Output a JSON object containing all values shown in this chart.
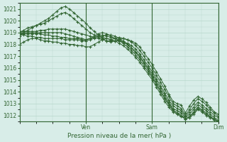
{
  "title": "",
  "xlabel": "Pression niveau de la mer( hPa )",
  "ylabel": "",
  "bg_color": "#d8ede8",
  "grid_color": "#b8d8cc",
  "line_color": "#336633",
  "marker_color": "#336633",
  "ylim": [
    1011.5,
    1021.5
  ],
  "yticks": [
    1012,
    1013,
    1014,
    1015,
    1016,
    1017,
    1018,
    1019,
    1020,
    1021
  ],
  "day_labels": [
    "Ven",
    "Sam",
    "Dim"
  ],
  "day_positions": [
    0.333,
    0.666,
    1.0
  ],
  "series": [
    {
      "x": [
        0,
        2,
        4,
        6,
        8,
        10,
        12,
        14,
        16,
        18,
        20,
        22,
        24,
        26,
        28,
        30,
        32,
        34,
        36,
        38,
        40,
        42,
        44,
        46,
        48,
        50,
        52,
        54,
        56,
        58,
        60,
        62,
        64,
        66,
        68,
        70,
        72,
        74,
        76,
        78,
        80,
        82,
        84,
        86,
        88,
        90,
        92,
        94,
        96
      ],
      "y": [
        1018.7,
        1019.0,
        1019.2,
        1019.4,
        1019.6,
        1019.8,
        1020.0,
        1020.2,
        1020.5,
        1020.8,
        1021.1,
        1021.2,
        1021.0,
        1020.7,
        1020.4,
        1020.1,
        1019.8,
        1019.4,
        1019.1,
        1018.8,
        1018.5,
        1018.3,
        1018.2,
        1018.3,
        1018.4,
        1018.5,
        1018.4,
        1018.3,
        1018.1,
        1017.8,
        1017.3,
        1016.8,
        1016.3,
        1015.7,
        1015.1,
        1014.5,
        1013.8,
        1013.2,
        1013.0,
        1012.9,
        1012.2,
        1012.8,
        1013.3,
        1013.6,
        1013.4,
        1013.1,
        1012.7,
        1012.3,
        1012.1
      ]
    },
    {
      "x": [
        0,
        2,
        4,
        6,
        8,
        10,
        12,
        14,
        16,
        18,
        20,
        22,
        24,
        26,
        28,
        30,
        32,
        34,
        36,
        38,
        40,
        42,
        44,
        46,
        48,
        50,
        52,
        54,
        56,
        58,
        60,
        62,
        64,
        66,
        68,
        70,
        72,
        74,
        76,
        78,
        80,
        82,
        84,
        86,
        88,
        90,
        92,
        94,
        96
      ],
      "y": [
        1019.0,
        1019.2,
        1019.4,
        1019.5,
        1019.6,
        1019.7,
        1019.8,
        1020.0,
        1020.2,
        1020.4,
        1020.6,
        1020.7,
        1020.5,
        1020.2,
        1019.9,
        1019.6,
        1019.3,
        1019.0,
        1018.8,
        1018.7,
        1018.6,
        1018.5,
        1018.4,
        1018.5,
        1018.6,
        1018.5,
        1018.4,
        1018.2,
        1017.9,
        1017.5,
        1017.0,
        1016.5,
        1016.0,
        1015.4,
        1014.8,
        1014.2,
        1013.6,
        1013.0,
        1012.8,
        1012.6,
        1012.0,
        1012.5,
        1013.0,
        1013.4,
        1013.2,
        1012.9,
        1012.5,
        1012.2,
        1011.9
      ]
    },
    {
      "x": [
        0,
        2,
        4,
        6,
        8,
        10,
        12,
        14,
        16,
        18,
        20,
        22,
        24,
        26,
        28,
        30,
        32,
        34,
        36,
        38,
        40,
        42,
        44,
        46,
        48,
        50,
        52,
        54,
        56,
        58,
        60,
        62,
        64,
        66,
        68,
        70,
        72,
        74,
        76,
        78,
        80,
        82,
        84,
        86,
        88,
        90,
        92,
        94,
        96
      ],
      "y": [
        1019.1,
        1019.1,
        1019.1,
        1019.1,
        1019.1,
        1019.2,
        1019.2,
        1019.3,
        1019.3,
        1019.3,
        1019.3,
        1019.3,
        1019.2,
        1019.1,
        1019.0,
        1018.9,
        1018.8,
        1018.7,
        1018.6,
        1018.5,
        1018.4,
        1018.3,
        1018.3,
        1018.3,
        1018.3,
        1018.2,
        1018.1,
        1017.9,
        1017.6,
        1017.2,
        1016.7,
        1016.2,
        1015.7,
        1015.1,
        1014.5,
        1013.9,
        1013.3,
        1012.8,
        1012.6,
        1012.4,
        1011.9,
        1012.3,
        1012.7,
        1013.1,
        1012.9,
        1012.6,
        1012.3,
        1012.0,
        1011.8
      ]
    },
    {
      "x": [
        0,
        2,
        4,
        6,
        8,
        10,
        12,
        14,
        16,
        18,
        20,
        22,
        24,
        26,
        28,
        30,
        32,
        34,
        36,
        38,
        40,
        42,
        44,
        46,
        48,
        50,
        52,
        54,
        56,
        58,
        60,
        62,
        64,
        66,
        68,
        70,
        72,
        74,
        76,
        78,
        80,
        82,
        84,
        86,
        88,
        90,
        92,
        94,
        96
      ],
      "y": [
        1019.0,
        1019.0,
        1019.0,
        1019.0,
        1019.0,
        1019.0,
        1019.0,
        1019.0,
        1019.0,
        1019.0,
        1019.0,
        1018.9,
        1018.8,
        1018.7,
        1018.6,
        1018.5,
        1018.4,
        1018.5,
        1018.6,
        1018.7,
        1018.8,
        1018.7,
        1018.6,
        1018.5,
        1018.4,
        1018.2,
        1018.0,
        1017.7,
        1017.4,
        1017.0,
        1016.5,
        1016.0,
        1015.5,
        1014.9,
        1014.3,
        1013.7,
        1013.1,
        1012.6,
        1012.4,
        1012.2,
        1011.8,
        1012.1,
        1012.5,
        1012.9,
        1012.7,
        1012.4,
        1012.1,
        1011.8,
        1011.6
      ]
    },
    {
      "x": [
        0,
        2,
        4,
        6,
        8,
        10,
        12,
        14,
        16,
        18,
        20,
        22,
        24,
        26,
        28,
        30,
        32,
        34,
        36,
        38,
        40,
        42,
        44,
        46,
        48,
        50,
        52,
        54,
        56,
        58,
        60,
        62,
        64,
        66,
        68,
        70,
        72,
        74,
        76,
        78,
        80,
        82,
        84,
        86,
        88,
        90,
        92,
        94,
        96
      ],
      "y": [
        1018.9,
        1018.9,
        1018.9,
        1018.9,
        1018.9,
        1018.9,
        1018.8,
        1018.8,
        1018.7,
        1018.7,
        1018.6,
        1018.6,
        1018.5,
        1018.5,
        1018.5,
        1018.4,
        1018.4,
        1018.5,
        1018.7,
        1018.9,
        1019.0,
        1018.9,
        1018.7,
        1018.5,
        1018.3,
        1018.1,
        1017.8,
        1017.5,
        1017.1,
        1016.7,
        1016.2,
        1015.7,
        1015.2,
        1014.6,
        1014.0,
        1013.4,
        1012.9,
        1012.4,
        1012.2,
        1012.0,
        1011.7,
        1011.9,
        1012.3,
        1012.7,
        1012.5,
        1012.2,
        1011.9,
        1011.7,
        1011.5
      ]
    },
    {
      "x": [
        0,
        2,
        4,
        6,
        8,
        10,
        12,
        14,
        16,
        18,
        20,
        22,
        24,
        26,
        28,
        30,
        32,
        34,
        36,
        38,
        40,
        42,
        44,
        46,
        48,
        50,
        52,
        54,
        56,
        58,
        60,
        62,
        64,
        66,
        68,
        70,
        72,
        74,
        76,
        78,
        80,
        82,
        84,
        86,
        88,
        90,
        92,
        94,
        96
      ],
      "y": [
        1018.0,
        1018.2,
        1018.4,
        1018.5,
        1018.5,
        1018.4,
        1018.3,
        1018.3,
        1018.2,
        1018.2,
        1018.1,
        1018.1,
        1018.0,
        1018.0,
        1017.9,
        1017.9,
        1017.8,
        1017.8,
        1018.0,
        1018.2,
        1018.4,
        1018.5,
        1018.4,
        1018.3,
        1018.1,
        1017.9,
        1017.6,
        1017.3,
        1016.9,
        1016.5,
        1016.0,
        1015.5,
        1015.0,
        1014.4,
        1013.8,
        1013.2,
        1012.7,
        1012.3,
        1012.1,
        1011.9,
        1011.7,
        1011.8,
        1012.1,
        1012.5,
        1012.3,
        1012.0,
        1011.8,
        1011.6,
        1011.5
      ]
    },
    {
      "x": [
        0,
        2,
        4,
        6,
        8,
        10,
        12,
        14,
        16,
        18,
        20,
        22,
        24,
        26,
        28,
        30,
        32,
        34,
        36,
        38,
        40,
        42,
        44,
        46,
        48,
        50,
        52,
        54,
        56,
        58,
        60,
        62,
        64,
        66,
        68,
        70,
        72,
        74,
        76,
        78,
        80,
        82,
        84,
        86,
        88,
        90,
        92,
        94,
        96
      ],
      "y": [
        1018.8,
        1018.8,
        1018.7,
        1018.7,
        1018.6,
        1018.6,
        1018.5,
        1018.5,
        1018.5,
        1018.5,
        1018.5,
        1018.4,
        1018.4,
        1018.4,
        1018.4,
        1018.3,
        1018.3,
        1018.4,
        1018.5,
        1018.6,
        1018.7,
        1018.8,
        1018.8,
        1018.7,
        1018.5,
        1018.3,
        1018.0,
        1017.7,
        1017.3,
        1016.9,
        1016.4,
        1015.9,
        1015.3,
        1014.7,
        1014.1,
        1013.5,
        1013.0,
        1012.5,
        1012.2,
        1012.0,
        1011.7,
        1011.9,
        1012.2,
        1012.6,
        1012.4,
        1012.1,
        1011.9,
        1011.6,
        1011.5
      ]
    }
  ]
}
